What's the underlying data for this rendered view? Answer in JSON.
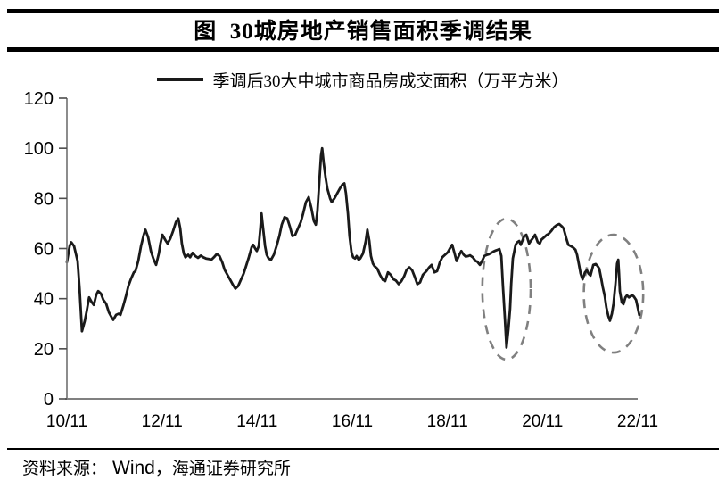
{
  "header": {
    "title": "图  30城房地产销售面积季调结果"
  },
  "legend": {
    "label": "季调后30大中城市商品房成交面积（万平方米）"
  },
  "footer": {
    "source_label": "资料来源：",
    "source_wind": "Wind",
    "source_rest": "，海通证券研究所"
  },
  "colors": {
    "line": "#1a1a1a",
    "axis": "#808080",
    "tick": "#4d4d4d",
    "text": "#000000",
    "ellipse": "#808080"
  },
  "chart_data": {
    "type": "line",
    "title": "图 30城房地产销售面积季调结果",
    "series_name": "季调后30大中城市商品房成交面积（万平方米）",
    "xlabel": "",
    "ylabel": "万平方米",
    "x_unit": "months since 2010/11",
    "x_tick_labels": [
      "10/11",
      "12/11",
      "14/11",
      "16/11",
      "18/11",
      "20/11",
      "22/11"
    ],
    "x_tick_months": [
      0,
      24,
      48,
      72,
      96,
      120,
      144
    ],
    "xlim_months": [
      0,
      144
    ],
    "y_ticks": [
      0,
      20,
      40,
      60,
      80,
      100,
      120
    ],
    "ylim": [
      0,
      120
    ],
    "grid": false,
    "legend_position": "top",
    "highlight_ellipses": [
      {
        "cx_month": 110.9,
        "cy_value": 43.8,
        "rx_months": 6.1,
        "ry_values": 28.1
      },
      {
        "cx_month": 137.9,
        "cy_value": 42.0,
        "rx_months": 7.5,
        "ry_values": 23.5
      }
    ],
    "points": [
      [
        0,
        54.5
      ],
      [
        0.7,
        61
      ],
      [
        1.1,
        62.5
      ],
      [
        1.8,
        61
      ],
      [
        2.7,
        55
      ],
      [
        3.2,
        44
      ],
      [
        3.8,
        27
      ],
      [
        4.5,
        31
      ],
      [
        5,
        35
      ],
      [
        5.6,
        40.5
      ],
      [
        6.3,
        38.5
      ],
      [
        6.8,
        37.5
      ],
      [
        7.4,
        41.5
      ],
      [
        7.9,
        43
      ],
      [
        8.6,
        42
      ],
      [
        9.2,
        39.5
      ],
      [
        9.9,
        38
      ],
      [
        10.6,
        34.5
      ],
      [
        11.3,
        32.5
      ],
      [
        11.7,
        31.5
      ],
      [
        12.4,
        33.5
      ],
      [
        13.1,
        34
      ],
      [
        13.5,
        33.5
      ],
      [
        14.2,
        37
      ],
      [
        14.9,
        41
      ],
      [
        15.5,
        45
      ],
      [
        16.2,
        48
      ],
      [
        16.9,
        50.5
      ],
      [
        17.3,
        51
      ],
      [
        18,
        55
      ],
      [
        18.7,
        61
      ],
      [
        19.4,
        65.5
      ],
      [
        19.8,
        67.5
      ],
      [
        20.5,
        64.5
      ],
      [
        21.2,
        59
      ],
      [
        21.8,
        56
      ],
      [
        22.5,
        53.5
      ],
      [
        23.2,
        58
      ],
      [
        23.6,
        62
      ],
      [
        24.1,
        65.5
      ],
      [
        24.8,
        63.5
      ],
      [
        25.4,
        62
      ],
      [
        26.1,
        64
      ],
      [
        26.8,
        67
      ],
      [
        27.5,
        70.5
      ],
      [
        28.1,
        72
      ],
      [
        28.6,
        68
      ],
      [
        29,
        62
      ],
      [
        29.5,
        58
      ],
      [
        29.9,
        56.5
      ],
      [
        30.6,
        57.5
      ],
      [
        31.1,
        56.5
      ],
      [
        31.7,
        58.3
      ],
      [
        32.4,
        57
      ],
      [
        33.1,
        56.3
      ],
      [
        33.8,
        57.2
      ],
      [
        34.4,
        56.5
      ],
      [
        35.1,
        56
      ],
      [
        35.8,
        55.8
      ],
      [
        36.5,
        55.6
      ],
      [
        37.1,
        56.5
      ],
      [
        37.8,
        57.8
      ],
      [
        38.5,
        57
      ],
      [
        39.2,
        54.5
      ],
      [
        39.8,
        51.5
      ],
      [
        40.5,
        49.5
      ],
      [
        41.2,
        47.5
      ],
      [
        41.9,
        45.5
      ],
      [
        42.5,
        44
      ],
      [
        43.2,
        45
      ],
      [
        43.9,
        47.5
      ],
      [
        44.6,
        50
      ],
      [
        45.2,
        53
      ],
      [
        45.9,
        56.5
      ],
      [
        46.6,
        60.5
      ],
      [
        47,
        61.5
      ],
      [
        47.5,
        60
      ],
      [
        47.9,
        59
      ],
      [
        48.4,
        61
      ],
      [
        48.8,
        68
      ],
      [
        49.1,
        74
      ],
      [
        49.5,
        68
      ],
      [
        50,
        61
      ],
      [
        50.4,
        57.5
      ],
      [
        50.9,
        56
      ],
      [
        51.5,
        55.5
      ],
      [
        52.2,
        57.5
      ],
      [
        52.9,
        61
      ],
      [
        53.6,
        65
      ],
      [
        54.2,
        69.5
      ],
      [
        54.9,
        72.5
      ],
      [
        55.6,
        72
      ],
      [
        56.3,
        68.5
      ],
      [
        56.9,
        65
      ],
      [
        57.6,
        65.5
      ],
      [
        58.3,
        68
      ],
      [
        59,
        70.5
      ],
      [
        59.6,
        74
      ],
      [
        60.3,
        78.5
      ],
      [
        61,
        80.5
      ],
      [
        61.7,
        76
      ],
      [
        62.3,
        71
      ],
      [
        62.8,
        69.5
      ],
      [
        63.2,
        75
      ],
      [
        63.7,
        87
      ],
      [
        64.1,
        97
      ],
      [
        64.4,
        100
      ],
      [
        64.8,
        94
      ],
      [
        65.3,
        88
      ],
      [
        65.7,
        84
      ],
      [
        66.4,
        80
      ],
      [
        66.8,
        78.5
      ],
      [
        67.5,
        80
      ],
      [
        68.2,
        82
      ],
      [
        68.9,
        84
      ],
      [
        69.5,
        85.5
      ],
      [
        70,
        86
      ],
      [
        70.4,
        82
      ],
      [
        70.9,
        74
      ],
      [
        71.3,
        65
      ],
      [
        71.8,
        58.5
      ],
      [
        72.2,
        56.5
      ],
      [
        72.7,
        56
      ],
      [
        73.1,
        57
      ],
      [
        73.6,
        55.5
      ],
      [
        74,
        56
      ],
      [
        74.7,
        58
      ],
      [
        75.4,
        63
      ],
      [
        75.8,
        67.5
      ],
      [
        76.3,
        63
      ],
      [
        76.7,
        57
      ],
      [
        77.2,
        54
      ],
      [
        77.6,
        53
      ],
      [
        78.3,
        52
      ],
      [
        79,
        49.5
      ],
      [
        79.7,
        47.5
      ],
      [
        80.3,
        47
      ],
      [
        81,
        50.5
      ],
      [
        81.7,
        49.5
      ],
      [
        82.4,
        47.7
      ],
      [
        83,
        47.2
      ],
      [
        83.7,
        45.8
      ],
      [
        84.4,
        47
      ],
      [
        85.1,
        49
      ],
      [
        85.7,
        51.5
      ],
      [
        86.4,
        52.5
      ],
      [
        87.1,
        51.3
      ],
      [
        87.8,
        48.5
      ],
      [
        88.4,
        45.8
      ],
      [
        89.1,
        46.5
      ],
      [
        89.8,
        49.5
      ],
      [
        90.7,
        51
      ],
      [
        91.4,
        52.5
      ],
      [
        92,
        53.5
      ],
      [
        92.7,
        50.5
      ],
      [
        93.4,
        51
      ],
      [
        94.1,
        54.5
      ],
      [
        94.7,
        56.5
      ],
      [
        95.4,
        57.5
      ],
      [
        96.1,
        58.5
      ],
      [
        96.8,
        60.5
      ],
      [
        97.2,
        61.5
      ],
      [
        97.9,
        57.5
      ],
      [
        98.3,
        55
      ],
      [
        99,
        57.5
      ],
      [
        99.5,
        59
      ],
      [
        100.1,
        57.5
      ],
      [
        100.6,
        56.8
      ],
      [
        101.3,
        57
      ],
      [
        101.7,
        57.3
      ],
      [
        102.4,
        56.5
      ],
      [
        103.1,
        55
      ],
      [
        103.5,
        54.8
      ],
      [
        104.2,
        53.5
      ],
      [
        104.9,
        55.5
      ],
      [
        105.3,
        57
      ],
      [
        106,
        57.5
      ],
      [
        106.4,
        57.7
      ],
      [
        107.1,
        58.3
      ],
      [
        107.6,
        58.8
      ],
      [
        108.2,
        59.2
      ],
      [
        108.7,
        59.5
      ],
      [
        109.1,
        59.8
      ],
      [
        109.6,
        57
      ],
      [
        110,
        45
      ],
      [
        110.5,
        32
      ],
      [
        110.9,
        20.5
      ],
      [
        111.4,
        28
      ],
      [
        111.8,
        36
      ],
      [
        112.1,
        46
      ],
      [
        112.5,
        56
      ],
      [
        113.2,
        61.5
      ],
      [
        113.6,
        62.5
      ],
      [
        114.1,
        63
      ],
      [
        114.5,
        61.5
      ],
      [
        115,
        63.5
      ],
      [
        115.4,
        65
      ],
      [
        115.9,
        65.5
      ],
      [
        116.6,
        62
      ],
      [
        117,
        63
      ],
      [
        117.5,
        64
      ],
      [
        118.1,
        65.5
      ],
      [
        118.8,
        62.5
      ],
      [
        119.3,
        62
      ],
      [
        119.7,
        63.5
      ],
      [
        120.4,
        64.5
      ],
      [
        121.1,
        65.5
      ],
      [
        121.5,
        65.8
      ],
      [
        122.2,
        67
      ],
      [
        122.9,
        68.5
      ],
      [
        123.5,
        69.3
      ],
      [
        124.2,
        69.8
      ],
      [
        124.9,
        68.8
      ],
      [
        125.3,
        68
      ],
      [
        126,
        64
      ],
      [
        126.5,
        61.5
      ],
      [
        127.1,
        61
      ],
      [
        127.8,
        60.3
      ],
      [
        128.3,
        59.5
      ],
      [
        128.7,
        57.5
      ],
      [
        129.2,
        53.5
      ],
      [
        129.6,
        50
      ],
      [
        130.1,
        47.7
      ],
      [
        130.7,
        50.5
      ],
      [
        131.2,
        51.3
      ],
      [
        131.6,
        50
      ],
      [
        132.1,
        49.2
      ],
      [
        132.8,
        53.5
      ],
      [
        133.4,
        53.8
      ],
      [
        133.9,
        53
      ],
      [
        134.3,
        52
      ],
      [
        134.8,
        48
      ],
      [
        135.2,
        44.5
      ],
      [
        135.7,
        41
      ],
      [
        136.1,
        36.5
      ],
      [
        136.6,
        33
      ],
      [
        137,
        31.2
      ],
      [
        137.5,
        34
      ],
      [
        137.9,
        38
      ],
      [
        138.4,
        46
      ],
      [
        138.8,
        54
      ],
      [
        139.1,
        55.5
      ],
      [
        139.3,
        50
      ],
      [
        139.5,
        43
      ],
      [
        140,
        38.5
      ],
      [
        140.4,
        37.8
      ],
      [
        140.9,
        40.5
      ],
      [
        141.3,
        41.3
      ],
      [
        141.8,
        40.5
      ],
      [
        142.2,
        41
      ],
      [
        142.7,
        41.3
      ],
      [
        143.1,
        40.7
      ],
      [
        143.6,
        39.5
      ],
      [
        144,
        36.5
      ],
      [
        144.4,
        33.5
      ]
    ]
  }
}
